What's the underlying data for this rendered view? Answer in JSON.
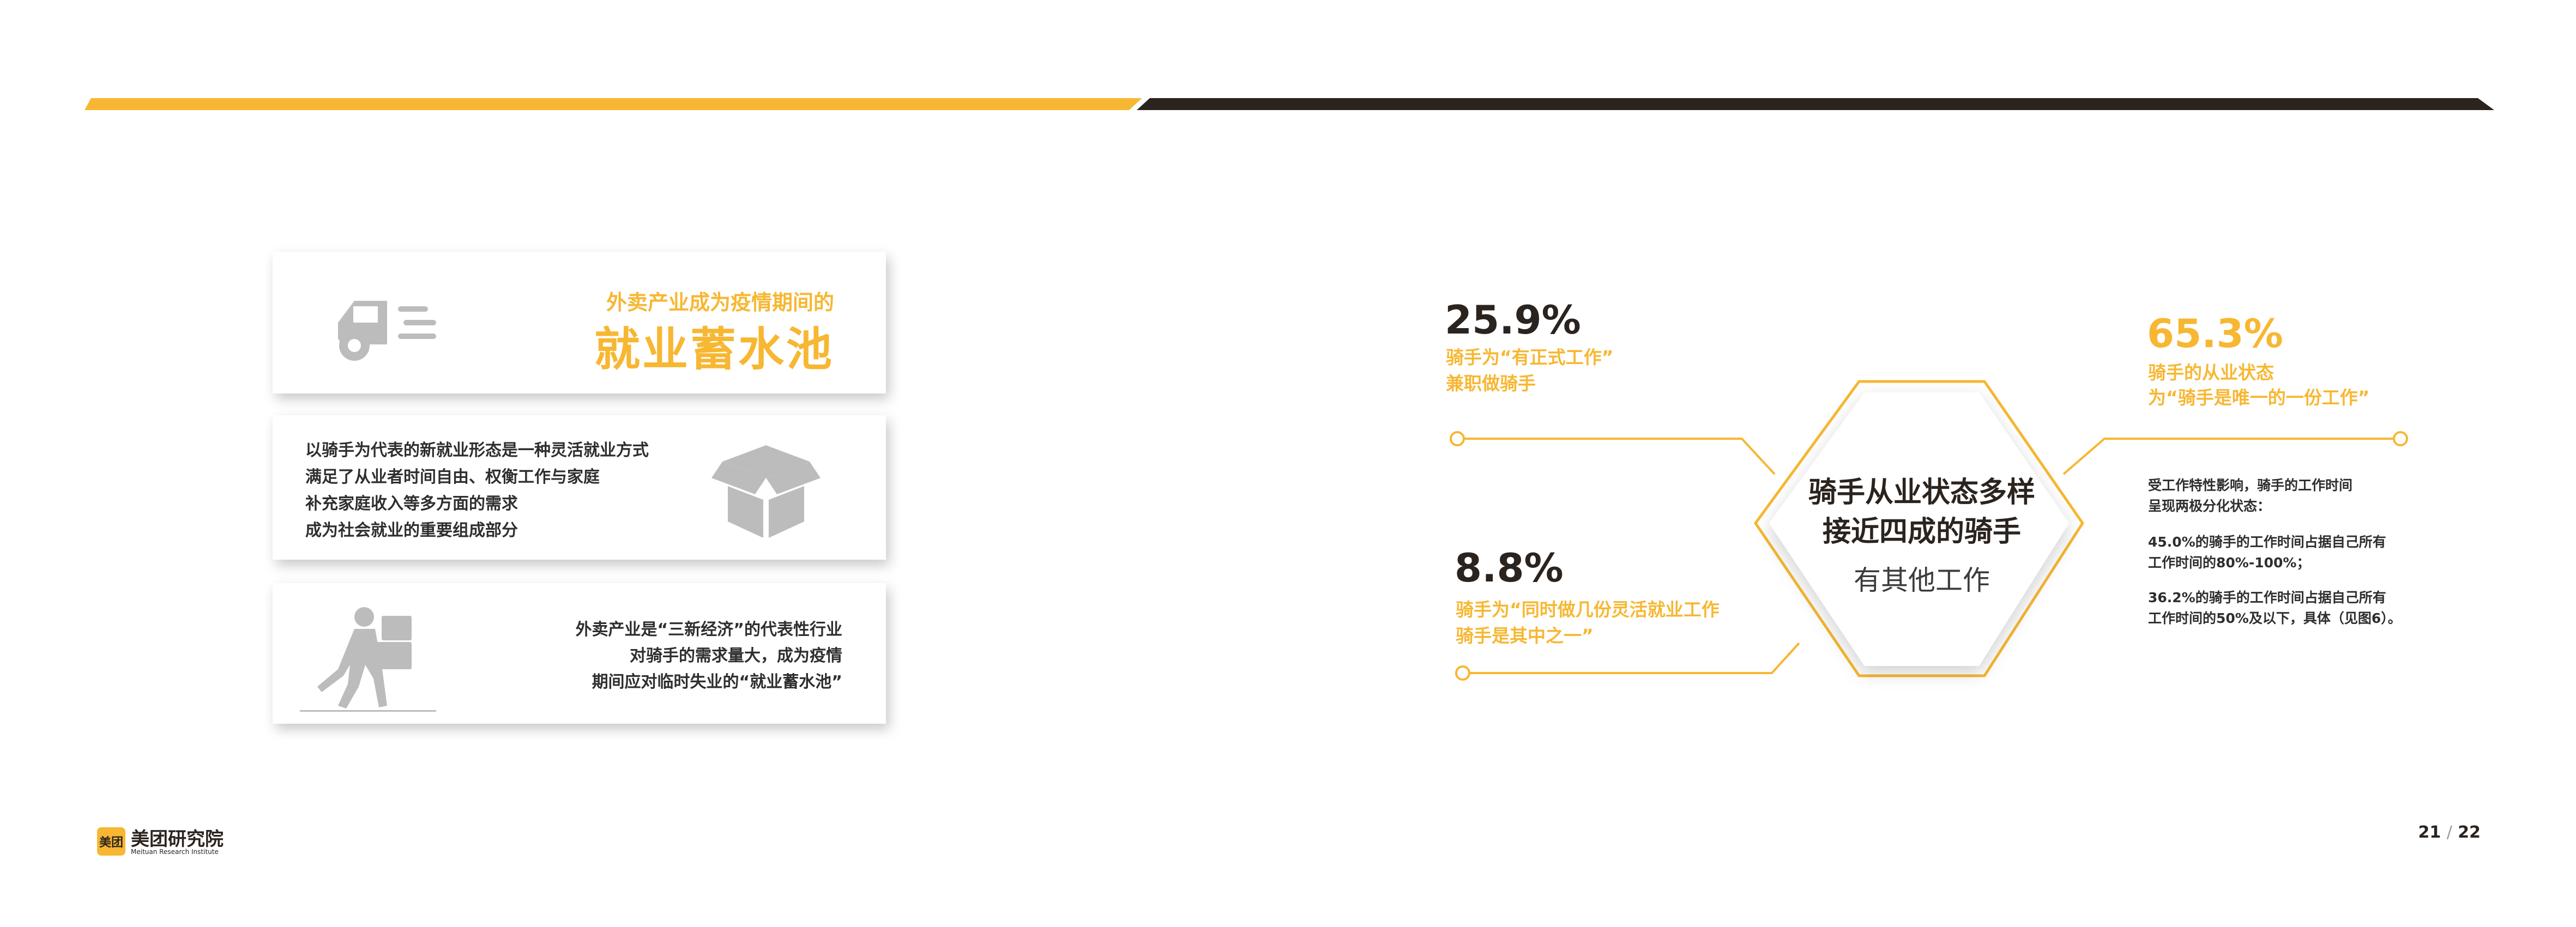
{
  "colors": {
    "accent": "#f7b732",
    "dark": "#2b231e",
    "icon_gray": "#bcbcbc"
  },
  "left": {
    "card1": {
      "subtitle": "外卖产业成为疫情期间的",
      "title": "就业蓄水池",
      "icon": "delivery-truck-icon"
    },
    "card2": {
      "lines": [
        "以骑手为代表的新就业形态是一种灵活就业方式",
        "满足了从业者时间自由、权衡工作与家庭",
        "补充家庭收入等多方面的需求",
        "成为社会就业的重要组成部分"
      ],
      "icon": "open-box-icon"
    },
    "card3": {
      "lines": [
        "外卖产业是“三新经济”的代表性行业",
        "对骑手的需求量大，成为疫情",
        "期间应对临时失业的“就业蓄水池”"
      ],
      "icon": "courier-carrying-boxes-icon"
    }
  },
  "right": {
    "center": {
      "line1": "骑手从业状态多样",
      "line2": "接近四成的骑手",
      "line3": "有其他工作"
    },
    "stat1": {
      "value": "25.9%",
      "desc1": "骑手为“有正式工作”",
      "desc2": "兼职做骑手"
    },
    "stat2": {
      "value": "8.8%",
      "desc1": "骑手为“同时做几份灵活就业工作",
      "desc2": "骑手是其中之一”"
    },
    "stat3": {
      "value": "65.3%",
      "desc1": "骑手的从业状态",
      "desc2": "为“骑手是唯一的一份工作”"
    },
    "note": {
      "intro1": "受工作特性影响，骑手的工作时间",
      "intro2": "呈现两极分化状态：",
      "p1a": "45.0%的骑手的工作时间占据自己所有",
      "p1b": "工作时间的80%-100%；",
      "p2a": "36.2%的骑手的工作时间占据自己所有",
      "p2b": "工作时间的50%及以下，具体（见图6）。"
    }
  },
  "footer": {
    "logo_mark": "美团",
    "logo_name": "美团研究院",
    "logo_en": "Meituan Research Institute",
    "page_current": "21",
    "page_sep": "/",
    "page_total": "22"
  }
}
